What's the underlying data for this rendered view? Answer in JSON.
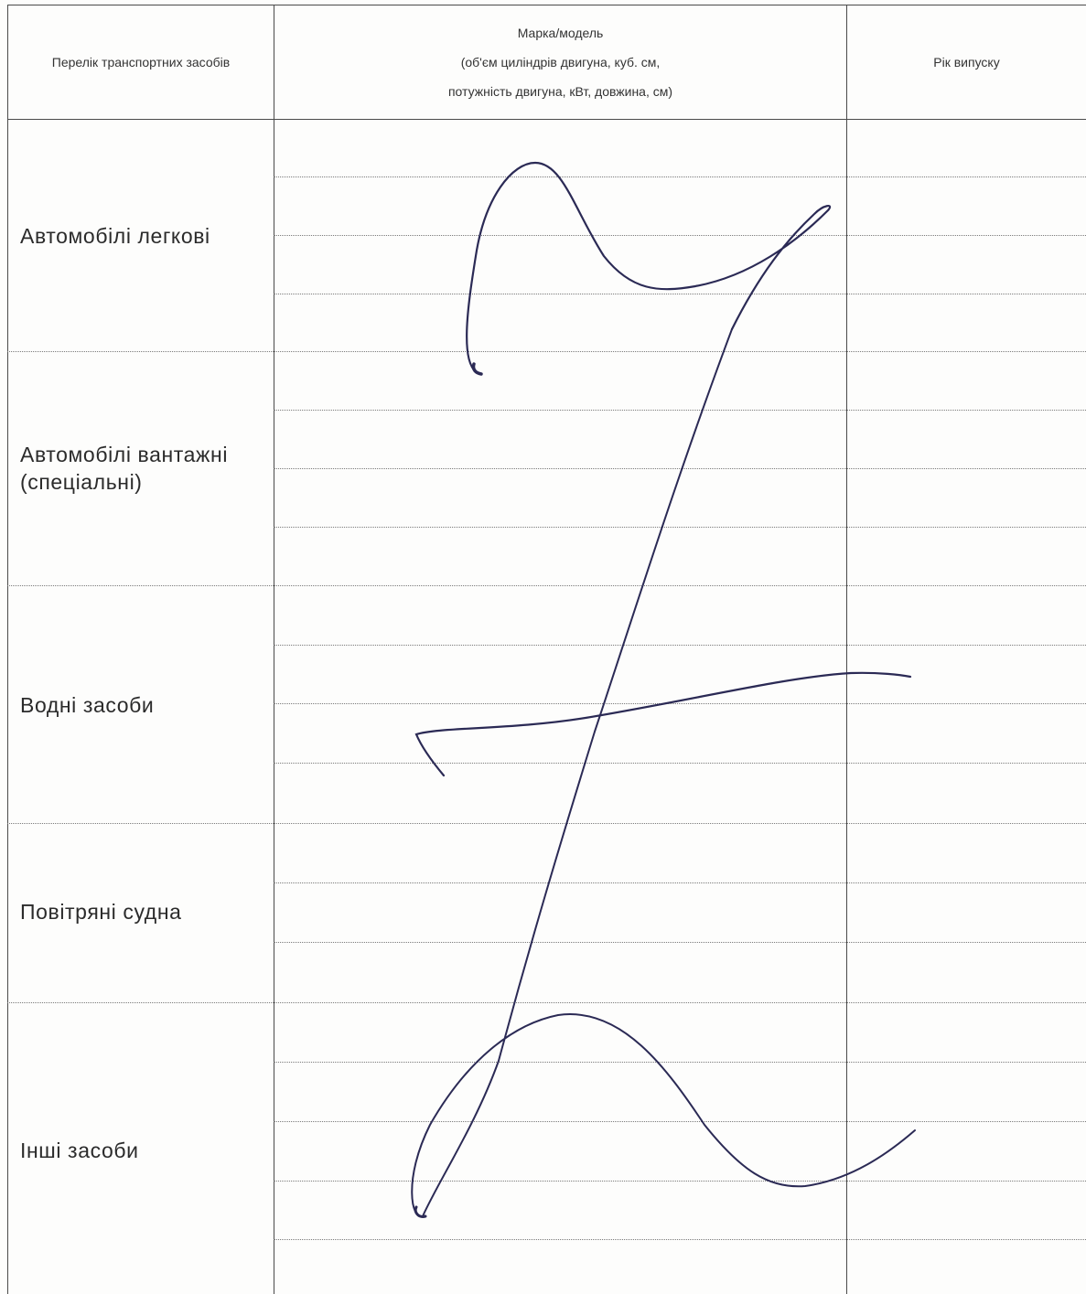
{
  "table": {
    "headers": {
      "vehicles_list": "Перелік транспортних засобів",
      "model_line1": "Марка/модель",
      "model_line2": "(об'єм циліндрів двигуна, куб. см,",
      "model_line3": "потужність двигуна, кВт, довжина, см)",
      "year": "Рік випуску"
    },
    "categories": [
      {
        "label": "Автомобілі легкові"
      },
      {
        "label_line1": "Автомобілі вантажні",
        "label_line2": "(спеціальні)"
      },
      {
        "label": "Водні засоби"
      },
      {
        "label": "Повітряні судна"
      },
      {
        "label": "Інші засоби"
      }
    ]
  },
  "signature": {
    "ink_color": "#2b2a55"
  }
}
